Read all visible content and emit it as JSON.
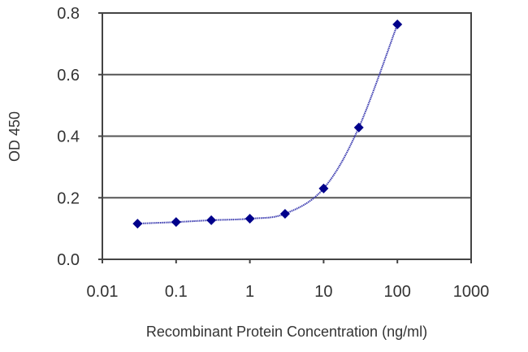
{
  "chart_data": {
    "type": "line",
    "title": "",
    "xlabel": "Recombinant Protein Concentration (ng/ml)",
    "ylabel": "OD 450",
    "xscale": "log",
    "xlim": [
      0.01,
      1000
    ],
    "ylim": [
      0.0,
      0.8
    ],
    "x_ticks": [
      0.01,
      0.1,
      1,
      10,
      100,
      1000
    ],
    "x_tick_labels": [
      "0.01",
      "0.1",
      "1",
      "10",
      "100",
      "1000"
    ],
    "y_ticks": [
      0.0,
      0.2,
      0.4,
      0.6,
      0.8
    ],
    "y_tick_labels": [
      "0.0",
      "0.2",
      "0.4",
      "0.6",
      "0.8"
    ],
    "grid": {
      "horizontal": true,
      "vertical": false
    },
    "legend": null,
    "series": [
      {
        "name": "OD 450",
        "marker": "diamond",
        "color": "#00008b",
        "line_color": "#3b3bb0",
        "x": [
          0.03,
          0.1,
          0.3,
          1,
          3,
          10,
          30,
          100
        ],
        "values": [
          0.116,
          0.121,
          0.127,
          0.132,
          0.148,
          0.23,
          0.428,
          0.763
        ]
      }
    ]
  },
  "colors": {
    "frame": "#444444",
    "grid": "#555555",
    "marker": "#00008b",
    "line": "#3b3bb0",
    "text": "#333333"
  }
}
